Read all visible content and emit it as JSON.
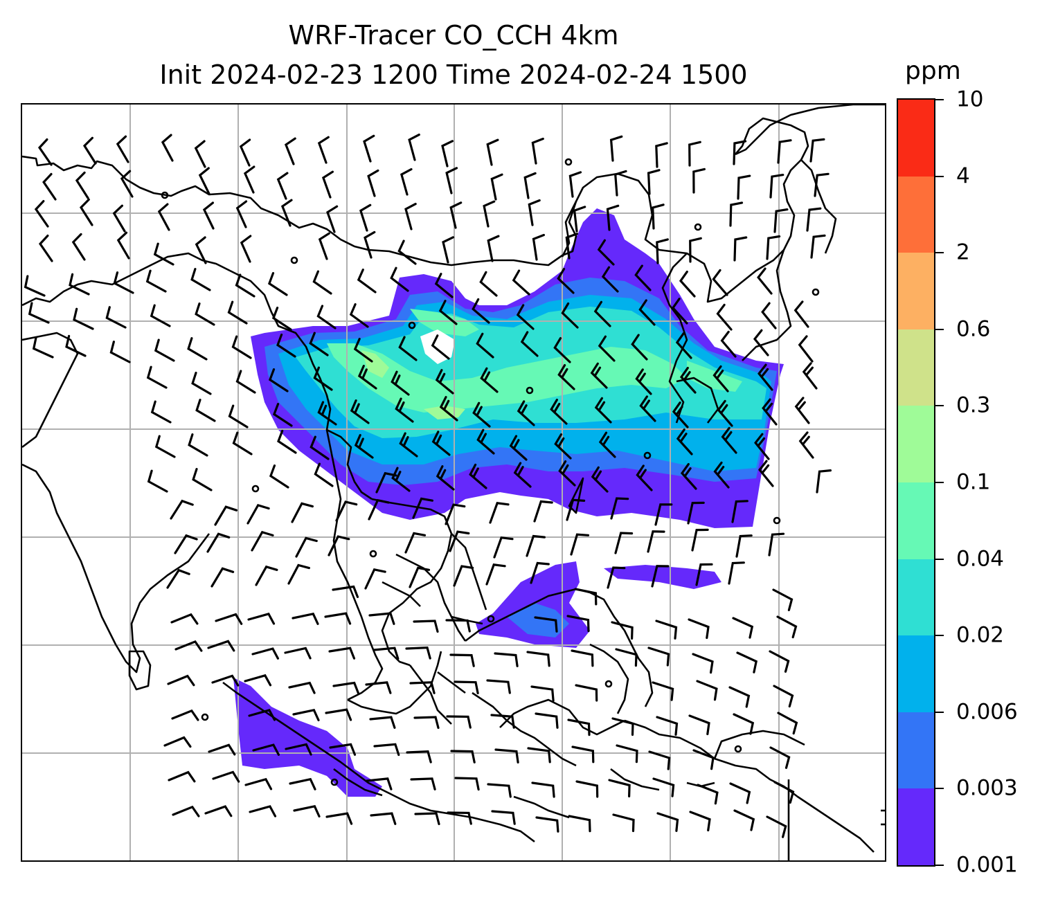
{
  "title": {
    "line1": "WRF-Tracer CO_CCH 4km",
    "line2": "Init 2024-02-23 1200 Time 2024-02-24 1500"
  },
  "colorbar": {
    "units": "ppm",
    "levels": [
      "0.001",
      "0.003",
      "0.006",
      "0.02",
      "0.04",
      "0.1",
      "0.3",
      "0.6",
      "2",
      "4",
      "10"
    ],
    "colors": [
      "#6529fb",
      "#3375f6",
      "#01b1ec",
      "#2fdfd3",
      "#66f9b5",
      "#9ffb98",
      "#cfe28a",
      "#fdb062",
      "#fe6f39",
      "#fa2b16"
    ]
  },
  "map": {
    "gridline_color": "#b0b0b0",
    "coastline_color": "#000000",
    "barb_color": "#000000"
  }
}
